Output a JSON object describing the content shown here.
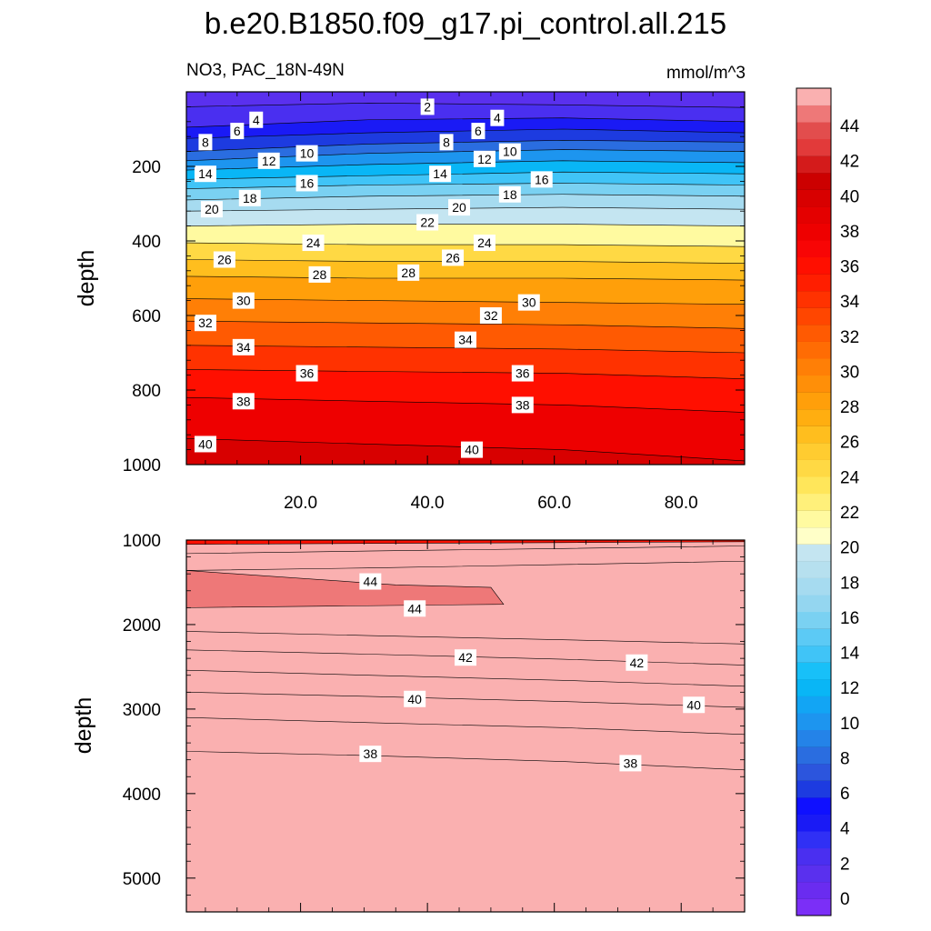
{
  "chart_data": [
    {
      "type": "contour",
      "title": "b.e20.B1850.f09_g17.pi_control.all.215",
      "subtitle_left": "NO3, PAC_18N-49N",
      "subtitle_right": "mmol/m^3",
      "xlabel": "",
      "ylabel": "depth",
      "xlim": [
        2,
        90
      ],
      "ylim": [
        1000,
        0
      ],
      "x_ticks": [
        20,
        40,
        60,
        80
      ],
      "x_tick_labels": [
        "20.0",
        "40.0",
        "60.0",
        "80.0"
      ],
      "y_ticks": [
        200,
        400,
        600,
        800,
        1000
      ],
      "y_tick_labels": [
        "200",
        "400",
        "600",
        "800",
        "1000"
      ],
      "contour_interval": 1,
      "contours": [
        {
          "level": 2,
          "depths": [
            40,
            30,
            35,
            42
          ]
        },
        {
          "level": 4,
          "depths": [
            95,
            75,
            70,
            80
          ]
        },
        {
          "level": 6,
          "depths": [
            125,
            110,
            100,
            110
          ]
        },
        {
          "level": 8,
          "depths": [
            160,
            140,
            130,
            135
          ]
        },
        {
          "level": 10,
          "depths": [
            185,
            165,
            155,
            160
          ]
        },
        {
          "level": 12,
          "depths": [
            210,
            195,
            185,
            190
          ]
        },
        {
          "level": 14,
          "depths": [
            235,
            225,
            215,
            220
          ]
        },
        {
          "level": 16,
          "depths": [
            260,
            250,
            245,
            250
          ]
        },
        {
          "level": 18,
          "depths": [
            290,
            280,
            275,
            280
          ]
        },
        {
          "level": 20,
          "depths": [
            320,
            315,
            310,
            315
          ]
        },
        {
          "level": 22,
          "depths": [
            360,
            355,
            355,
            360
          ]
        },
        {
          "level": 24,
          "depths": [
            405,
            410,
            410,
            415
          ]
        },
        {
          "level": 26,
          "depths": [
            450,
            455,
            455,
            460
          ]
        },
        {
          "level": 28,
          "depths": [
            495,
            500,
            500,
            505
          ]
        },
        {
          "level": 30,
          "depths": [
            555,
            560,
            565,
            570
          ]
        },
        {
          "level": 32,
          "depths": [
            615,
            620,
            625,
            635
          ]
        },
        {
          "level": 34,
          "depths": [
            680,
            685,
            690,
            700
          ]
        },
        {
          "level": 36,
          "depths": [
            745,
            750,
            755,
            770
          ]
        },
        {
          "level": 38,
          "depths": [
            820,
            830,
            840,
            860
          ]
        },
        {
          "level": 40,
          "depths": [
            930,
            945,
            960,
            990
          ]
        }
      ],
      "labels": [
        {
          "text": "2",
          "x": 40,
          "y": 40
        },
        {
          "text": "4",
          "x": 13,
          "y": 75
        },
        {
          "text": "4",
          "x": 51,
          "y": 70
        },
        {
          "text": "6",
          "x": 10,
          "y": 105
        },
        {
          "text": "6",
          "x": 48,
          "y": 105
        },
        {
          "text": "8",
          "x": 5,
          "y": 135
        },
        {
          "text": "8",
          "x": 43,
          "y": 135
        },
        {
          "text": "10",
          "x": 21,
          "y": 165
        },
        {
          "text": "10",
          "x": 53,
          "y": 160
        },
        {
          "text": "12",
          "x": 15,
          "y": 185
        },
        {
          "text": "12",
          "x": 49,
          "y": 180
        },
        {
          "text": "14",
          "x": 5,
          "y": 220
        },
        {
          "text": "14",
          "x": 42,
          "y": 220
        },
        {
          "text": "16",
          "x": 21,
          "y": 245
        },
        {
          "text": "16",
          "x": 58,
          "y": 235
        },
        {
          "text": "18",
          "x": 12,
          "y": 285
        },
        {
          "text": "18",
          "x": 53,
          "y": 275
        },
        {
          "text": "20",
          "x": 6,
          "y": 315
        },
        {
          "text": "20",
          "x": 45,
          "y": 310
        },
        {
          "text": "22",
          "x": 40,
          "y": 350
        },
        {
          "text": "24",
          "x": 22,
          "y": 405
        },
        {
          "text": "24",
          "x": 49,
          "y": 405
        },
        {
          "text": "26",
          "x": 8,
          "y": 450
        },
        {
          "text": "26",
          "x": 44,
          "y": 445
        },
        {
          "text": "28",
          "x": 23,
          "y": 490
        },
        {
          "text": "28",
          "x": 37,
          "y": 485
        },
        {
          "text": "30",
          "x": 11,
          "y": 560
        },
        {
          "text": "30",
          "x": 56,
          "y": 565
        },
        {
          "text": "32",
          "x": 5,
          "y": 620
        },
        {
          "text": "32",
          "x": 50,
          "y": 600
        },
        {
          "text": "34",
          "x": 11,
          "y": 685
        },
        {
          "text": "34",
          "x": 46,
          "y": 665
        },
        {
          "text": "36",
          "x": 21,
          "y": 755
        },
        {
          "text": "36",
          "x": 55,
          "y": 755
        },
        {
          "text": "38",
          "x": 11,
          "y": 830
        },
        {
          "text": "38",
          "x": 55,
          "y": 840
        },
        {
          "text": "40",
          "x": 5,
          "y": 945
        },
        {
          "text": "40",
          "x": 47,
          "y": 960
        }
      ]
    },
    {
      "type": "contour",
      "xlabel": "",
      "ylabel": "depth",
      "xlim": [
        2,
        90
      ],
      "ylim": [
        5400,
        1000
      ],
      "x_ticks": [
        20,
        40,
        60,
        80
      ],
      "x_tick_labels": [
        "",
        "",
        "",
        ""
      ],
      "y_ticks": [
        1000,
        2000,
        3000,
        4000,
        5000
      ],
      "y_tick_labels": [
        "1000",
        "2000",
        "3000",
        "4000",
        "5000"
      ],
      "contour_interval": 1,
      "contours": [
        {
          "level": 38,
          "depths": [
            3500,
            3550,
            3620,
            3720
          ]
        },
        {
          "level": 39,
          "depths": [
            3100,
            3160,
            3220,
            3300
          ]
        },
        {
          "level": 40,
          "depths": [
            2800,
            2850,
            2910,
            2980
          ]
        },
        {
          "level": 41,
          "depths": [
            2540,
            2600,
            2660,
            2730
          ]
        },
        {
          "level": 42,
          "depths": [
            2300,
            2350,
            2410,
            2480
          ]
        },
        {
          "level": 43,
          "depths": [
            2080,
            2130,
            2180,
            2230
          ]
        },
        {
          "level": 44,
          "depths": [
            1360,
            1330,
            1290,
            1250
          ]
        },
        {
          "level": 45,
          "depths": [
            1160,
            1130,
            1100,
            1070
          ]
        },
        {
          "level": 46,
          "depths": [
            1050,
            1040,
            1030,
            1020
          ]
        }
      ],
      "labels": [
        {
          "text": "44",
          "x": 31,
          "y": 1490
        },
        {
          "text": "44",
          "x": 38,
          "y": 1810
        },
        {
          "text": "42",
          "x": 46,
          "y": 2390
        },
        {
          "text": "42",
          "x": 73,
          "y": 2450
        },
        {
          "text": "40",
          "x": 38,
          "y": 2880
        },
        {
          "text": "40",
          "x": 82,
          "y": 2950
        },
        {
          "text": "38",
          "x": 31,
          "y": 3530
        },
        {
          "text": "38",
          "x": 72,
          "y": 3640
        }
      ]
    }
  ],
  "colorbar": {
    "levels": [
      0,
      2,
      4,
      6,
      8,
      10,
      12,
      14,
      16,
      18,
      20,
      22,
      24,
      26,
      28,
      30,
      32,
      34,
      36,
      38,
      40,
      42,
      44
    ],
    "tick_labels": [
      "0",
      "2",
      "4",
      "6",
      "8",
      "10",
      "12",
      "14",
      "16",
      "18",
      "20",
      "22",
      "24",
      "26",
      "28",
      "30",
      "32",
      "34",
      "36",
      "38",
      "40",
      "42",
      "44"
    ],
    "colors": [
      "#7b2ff7",
      "#6a2cf0",
      "#5a30ee",
      "#4a2ff0",
      "#3030f5",
      "#1a1af5",
      "#0f10ff",
      "#1d3be0",
      "#2c55dd",
      "#2a6de0",
      "#2483e8",
      "#1d95ef",
      "#12a5f4",
      "#09b6f6",
      "#18c0f8",
      "#40c4f7",
      "#5ccaf5",
      "#7ad1f2",
      "#94d6f0",
      "#a6dbf0",
      "#b6e0ef",
      "#c4e5f1",
      "#ffffc8",
      "#fffaa0",
      "#fff07a",
      "#ffe65a",
      "#ffd944",
      "#ffcc30",
      "#ffbe1e",
      "#ffae10",
      "#ff9f0a",
      "#ff8f08",
      "#ff7f06",
      "#ff6c04",
      "#ff5a02",
      "#ff4600",
      "#ff3200",
      "#ff1e00",
      "#ff0f00",
      "#f80505",
      "#ee0000",
      "#e40000",
      "#d80000",
      "#cc0000",
      "#d41b1b",
      "#e23a3a",
      "#e24d4d",
      "#ee7878",
      "#fab0b0"
    ]
  }
}
